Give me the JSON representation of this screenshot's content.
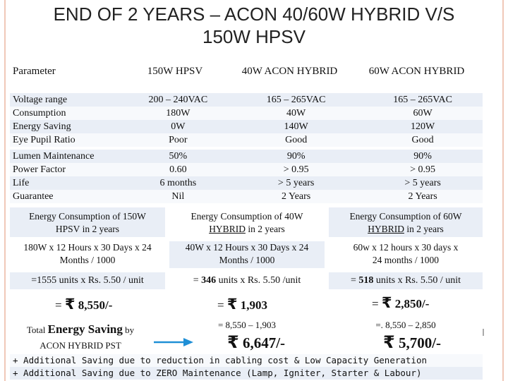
{
  "title": "END OF 2 YEARS – ACON 40/60W HYBRID V/S 150W HPSV",
  "headers": [
    "Parameter",
    "150W HPSV",
    "40W ACON HYBRID",
    "60W ACON HYBRID"
  ],
  "rows": [
    [
      "Voltage range",
      "200 – 240VAC",
      "165 – 265VAC",
      "165 – 265VAC"
    ],
    [
      "Consumption",
      "180W",
      "40W",
      "60W"
    ],
    [
      "Energy Saving",
      "0W",
      "140W",
      "120W"
    ],
    [
      "Eye Pupil Ratio",
      "Poor",
      "Good",
      "Good"
    ],
    [
      "Lumen Maintenance",
      "50%",
      "90%",
      "90%"
    ],
    [
      "Power Factor",
      "0.60",
      "> 0.95",
      "> 0.95"
    ],
    [
      "Life",
      "6 months",
      "> 5 years",
      "> 5 years"
    ],
    [
      "Guarantee",
      "Nil",
      "2 Years",
      "2 Years"
    ]
  ],
  "consumption": {
    "hpsv": {
      "heading_a": "Energy Consumption of 150W",
      "heading_b": "HPSV in 2 years",
      "formula_a": "180W x 12 Hours x 30 Days x 24",
      "formula_b": "Months / 1000",
      "units": "=1555 units x Rs. 5.50 / unit",
      "eq": "=",
      "rupee": "₹",
      "cost": "8,550/-"
    },
    "hybrid40": {
      "heading_a": "Energy Consumption of 40W",
      "heading_b_link": "HYBRID",
      "heading_b_rest": " in 2 years",
      "formula_a": "40W x 12 Hours x 30 Days x 24",
      "formula_b": "Months / 1000",
      "units_pre": "= ",
      "units_num": "346",
      "units_post": " units x Rs. 5.50 /unit",
      "eq": "=",
      "rupee": "₹",
      "cost": "1,903",
      "diff": "= 8,550 – 1,903",
      "saving": "6,647/-"
    },
    "hybrid60": {
      "heading_a": "Energy Consumption of 60W",
      "heading_b_link": "HYBRID",
      "heading_b_rest": " in 2 years",
      "formula_a": "60w x 12 hours x 30 days x",
      "formula_b": "24 months / 1000",
      "units_pre": "= ",
      "units_num": "518",
      "units_post": " units x  Rs. 5.50 / unit",
      "eq": "=",
      "rupee": "₹",
      "cost": "2,850/-",
      "diff": "=. 8,550 – 2,850",
      "saving": "5,700/-"
    }
  },
  "total_saving": {
    "word1": "Total",
    "emph": "Energy Saving",
    "word2": "by",
    "line2": "ACON HYBRID PST"
  },
  "notes": [
    "+ Additional Saving due to reduction in cabling cost & Low Capacity Generation",
    "+ Additional Saving due to ZERO Maintenance (Lamp, Igniter, Starter & Labour)"
  ],
  "colors": {
    "row_shade": "#e9eef6",
    "arrow": "#1f8fd6",
    "side_rule": "#f0c8b8"
  }
}
